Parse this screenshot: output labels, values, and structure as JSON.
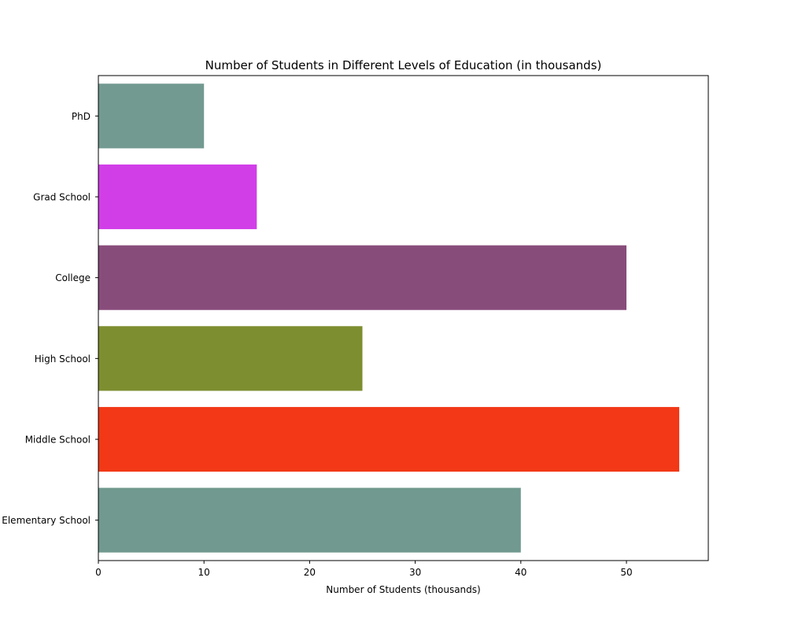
{
  "chart_data": {
    "type": "bar",
    "orientation": "horizontal",
    "title": "Number of Students in Different Levels of Education (in thousands)",
    "xlabel": "Number of Students (thousands)",
    "ylabel": "",
    "categories": [
      "Elementary School",
      "Middle School",
      "High School",
      "College",
      "Grad School",
      "PhD"
    ],
    "values": [
      40,
      55,
      25,
      50,
      15,
      10
    ],
    "colors": [
      "#71998f",
      "#f23816",
      "#7d8e30",
      "#884c7b",
      "#d13ee8",
      "#739a90"
    ],
    "xlim": [
      0,
      57.75
    ],
    "xticks": [
      0,
      10,
      20,
      30,
      40,
      50
    ],
    "grid": false,
    "legend": "none"
  }
}
